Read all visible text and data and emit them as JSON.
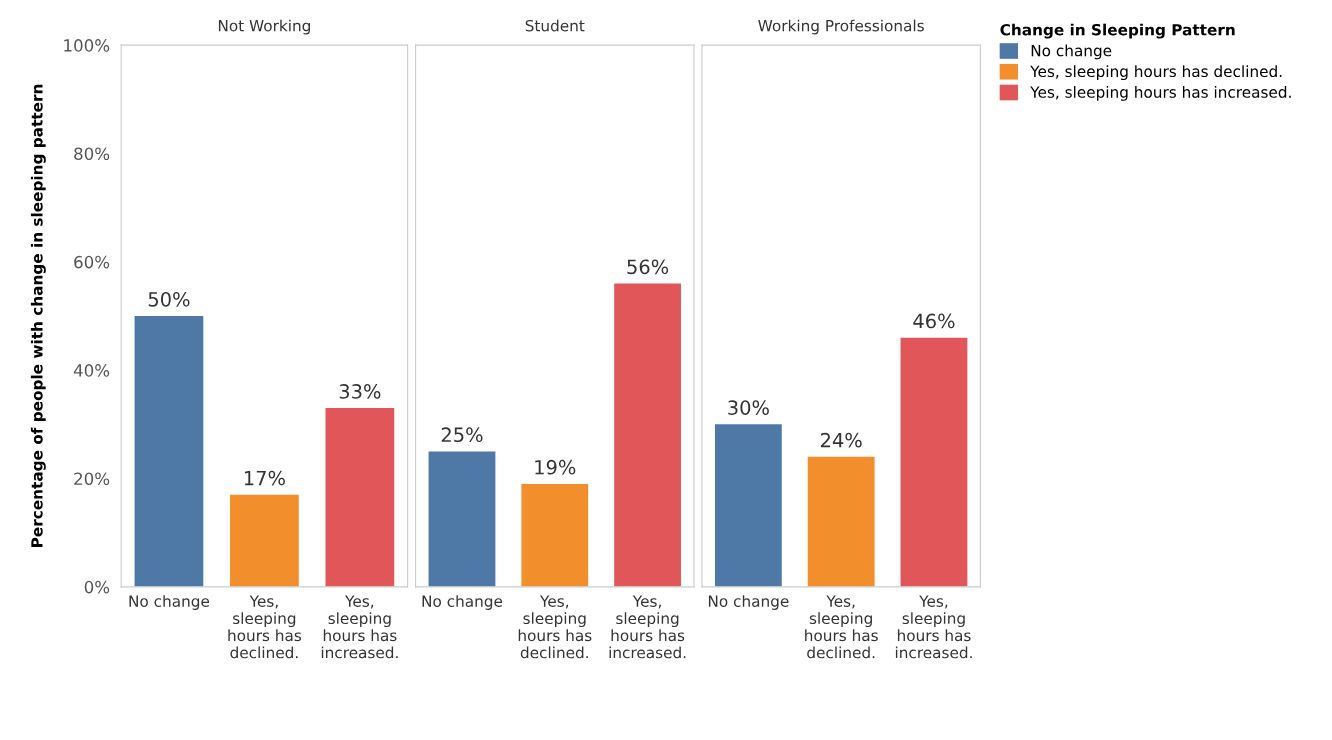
{
  "chart_data": [
    {
      "type": "bar",
      "title": "Not Working",
      "ylabel": "Percentage of people with change in sleeping pattern",
      "categories": [
        "No change",
        "Yes, sleeping hours has declined.",
        "Yes, sleeping hours has increased."
      ],
      "values": [
        50,
        17,
        33
      ],
      "colors": [
        "#4e79a7",
        "#f28e2b",
        "#e15759"
      ],
      "value_labels": [
        "50%",
        "17%",
        "33%"
      ],
      "ylim": [
        0,
        100
      ],
      "yticks": [
        {
          "value": 0,
          "label": "0%"
        },
        {
          "value": 20,
          "label": "20%"
        },
        {
          "value": 40,
          "label": "40%"
        },
        {
          "value": 60,
          "label": "60%"
        },
        {
          "value": 80,
          "label": "80%"
        },
        {
          "value": 100,
          "label": "100%"
        }
      ]
    },
    {
      "type": "bar",
      "title": "Student",
      "categories": [
        "No change",
        "Yes, sleeping hours has declined.",
        "Yes, sleeping hours has increased."
      ],
      "values": [
        25,
        19,
        56
      ],
      "colors": [
        "#4e79a7",
        "#f28e2b",
        "#e15759"
      ],
      "value_labels": [
        "25%",
        "19%",
        "56%"
      ],
      "ylim": [
        0,
        100
      ],
      "tick_labels": "x"
    },
    {
      "type": "bar",
      "title": "Working Professionals",
      "categories": [
        "No change",
        "Yes, sleeping hours has declined.",
        "Yes, sleeping hours has increased."
      ],
      "series": [
        {
          "name": "No change",
          "color": "#4e79a7",
          "values": [
            30,
            null,
            null
          ],
          "value_labels": [
            "30%",
            null,
            null
          ]
        },
        {
          "name": "Yes, sleeping hours has declined.",
          "color": "#f28e2b",
          "values": [
            null,
            24,
            null
          ],
          "value_labels": [
            null,
            "24%",
            null
          ]
        },
        {
          "name": "Yes, sleeping hours has increased.",
          "color": "#e15759",
          "values": [
            null,
            null,
            46
          ],
          "value_labels": [
            null,
            null,
            "46%"
          ]
        }
      ],
      "ylim": [
        0,
        100
      ],
      "tick_labels": "x",
      "legend": "right",
      "legend_title": "Change in Sleeping Pattern"
    }
  ]
}
